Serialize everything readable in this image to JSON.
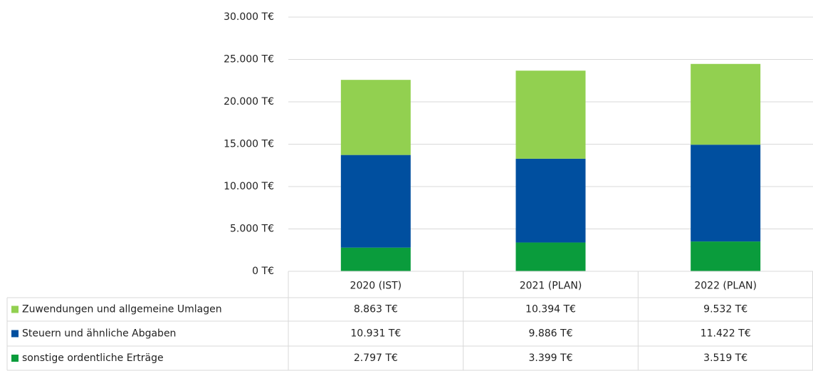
{
  "chart_data": {
    "type": "bar",
    "stacked": true,
    "categories": [
      "2020 (IST)",
      "2021 (PLAN)",
      "2022 (PLAN)"
    ],
    "series": [
      {
        "name": "Zuwendungen und allgemeine Umlagen",
        "color": "#92d050",
        "values": [
          8863,
          10394,
          9532
        ],
        "value_labels": [
          "8.863 T€",
          "10.394 T€",
          "9.532 T€"
        ]
      },
      {
        "name": "Steuern und ähnliche Abgaben",
        "color": "#004f9f",
        "values": [
          10931,
          9886,
          11422
        ],
        "value_labels": [
          "10.931 T€",
          "9.886 T€",
          "11.422 T€"
        ]
      },
      {
        "name": "sonstige ordentliche Erträge",
        "color": "#0a9c3c",
        "values": [
          2797,
          3399,
          3519
        ],
        "value_labels": [
          "2.797 T€",
          "3.399 T€",
          "3.519 T€"
        ]
      }
    ],
    "ylim": [
      0,
      30000
    ],
    "yticks": [
      {
        "value": 0,
        "label": "0 T€"
      },
      {
        "value": 5000,
        "label": "5.000 T€"
      },
      {
        "value": 10000,
        "label": "10.000 T€"
      },
      {
        "value": 15000,
        "label": "15.000 T€"
      },
      {
        "value": 20000,
        "label": "20.000 T€"
      },
      {
        "value": 25000,
        "label": "25.000 T€"
      },
      {
        "value": 30000,
        "label": "30.000 T€"
      }
    ],
    "grid": true
  }
}
